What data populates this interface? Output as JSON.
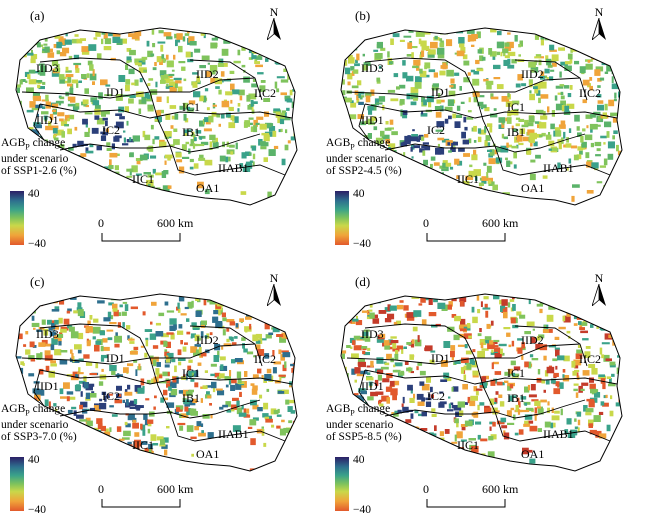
{
  "panels": [
    {
      "label": "(a)",
      "legend": {
        "title_line1": "AGB",
        "subscript": "P",
        "title_line1_suffix": " change",
        "title_line2": "under scenario",
        "title_line3": "of SSP1-2.6 (%)",
        "max": "40",
        "min": "−40"
      },
      "scale": {
        "zero": "0",
        "distance": "600 km"
      },
      "north": "N",
      "ramp_variant": "mild"
    },
    {
      "label": "(b)",
      "legend": {
        "title_line1": "AGB",
        "subscript": "P",
        "title_line1_suffix": " change",
        "title_line2": "under scenario",
        "title_line3": "of SSP2-4.5 (%)",
        "max": "40",
        "min": "−40"
      },
      "scale": {
        "zero": "0",
        "distance": "600 km"
      },
      "north": "N",
      "ramp_variant": "mild"
    },
    {
      "label": "(c)",
      "legend": {
        "title_line1": "AGB",
        "subscript": "P",
        "title_line1_suffix": " change",
        "title_line2": "under scenario",
        "title_line3": "of SSP3-7.0 (%)",
        "max": "40",
        "min": "−40"
      },
      "scale": {
        "zero": "0",
        "distance": "600 km"
      },
      "north": "N",
      "ramp_variant": "moderate"
    },
    {
      "label": "(d)",
      "legend": {
        "title_line1": "AGB",
        "subscript": "P",
        "title_line1_suffix": " change",
        "title_line2": "under scenario",
        "title_line3": "of SSP5-8.5 (%)",
        "max": "40",
        "min": "−40"
      },
      "scale": {
        "zero": "0",
        "distance": "600 km"
      },
      "north": "N",
      "ramp_variant": "strong"
    }
  ],
  "regions": [
    "IID3",
    "IID2",
    "ID1",
    "IIC2",
    "IC1",
    "IID1",
    "IC2",
    "IB1",
    "IIAB1",
    "IIC1",
    "OA1"
  ],
  "colors": {
    "high": "#2b1f66",
    "mid_high": "#3aa28a",
    "mid": "#7fc35c",
    "low": "#e2592c",
    "boundary": "#000000"
  }
}
